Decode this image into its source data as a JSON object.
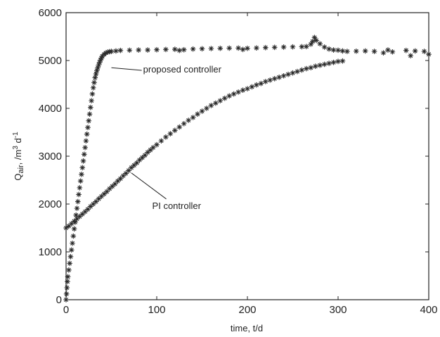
{
  "chart_data": {
    "type": "scatter",
    "title": "",
    "xlabel": "time, t/d",
    "ylabel_main": "Q",
    "ylabel_sub": "air",
    "ylabel_rest": ", /m",
    "ylabel_sup1": "3",
    "ylabel_d": " d",
    "ylabel_sup2": "-1",
    "xlim": [
      0,
      400
    ],
    "ylim": [
      0,
      6000
    ],
    "xticks": [
      0,
      100,
      200,
      300,
      400
    ],
    "yticks": [
      0,
      1000,
      2000,
      3000,
      4000,
      5000,
      6000
    ],
    "grid": false,
    "legend": "none",
    "marker": "asterisk",
    "annotations": [
      {
        "text": "proposed controller",
        "x": 85,
        "y": 4750,
        "arrow_to": [
          50,
          4850
        ]
      },
      {
        "text": "PI controller",
        "x": 95,
        "y": 1900,
        "arrow_to": [
          72,
          2650
        ]
      }
    ],
    "series": [
      {
        "label": "proposed controller",
        "points": [
          [
            0,
            0
          ],
          [
            0.5,
            120
          ],
          [
            1,
            250
          ],
          [
            1.5,
            380
          ],
          [
            2,
            480
          ],
          [
            3,
            620
          ],
          [
            4,
            760
          ],
          [
            5,
            900
          ],
          [
            6,
            1040
          ],
          [
            7,
            1180
          ],
          [
            8,
            1330
          ],
          [
            9,
            1480
          ],
          [
            10,
            1620
          ],
          [
            11,
            1770
          ],
          [
            12,
            1910
          ],
          [
            13,
            2050
          ],
          [
            14,
            2200
          ],
          [
            15,
            2340
          ],
          [
            16,
            2480
          ],
          [
            17,
            2620
          ],
          [
            18,
            2760
          ],
          [
            19,
            2900
          ],
          [
            20,
            3040
          ],
          [
            21,
            3180
          ],
          [
            22,
            3320
          ],
          [
            23,
            3460
          ],
          [
            24,
            3600
          ],
          [
            25,
            3740
          ],
          [
            26,
            3880
          ],
          [
            27,
            4020
          ],
          [
            28,
            4160
          ],
          [
            29,
            4300
          ],
          [
            30,
            4430
          ],
          [
            31,
            4540
          ],
          [
            32,
            4640
          ],
          [
            33,
            4720
          ],
          [
            34,
            4790
          ],
          [
            35,
            4850
          ],
          [
            36,
            4910
          ],
          [
            37,
            4960
          ],
          [
            38,
            5010
          ],
          [
            39,
            5050
          ],
          [
            40,
            5090
          ],
          [
            42,
            5130
          ],
          [
            44,
            5160
          ],
          [
            46,
            5175
          ],
          [
            48,
            5185
          ],
          [
            50,
            5190
          ],
          [
            55,
            5200
          ],
          [
            60,
            5210
          ],
          [
            70,
            5215
          ],
          [
            80,
            5220
          ],
          [
            90,
            5220
          ],
          [
            100,
            5225
          ],
          [
            110,
            5230
          ],
          [
            120,
            5235
          ],
          [
            125,
            5210
          ],
          [
            130,
            5225
          ],
          [
            140,
            5240
          ],
          [
            150,
            5245
          ],
          [
            160,
            5250
          ],
          [
            170,
            5255
          ],
          [
            180,
            5258
          ],
          [
            190,
            5260
          ],
          [
            195,
            5230
          ],
          [
            200,
            5255
          ],
          [
            210,
            5262
          ],
          [
            220,
            5270
          ],
          [
            230,
            5275
          ],
          [
            240,
            5280
          ],
          [
            250,
            5285
          ],
          [
            260,
            5288
          ],
          [
            265,
            5292
          ],
          [
            270,
            5340
          ],
          [
            272,
            5400
          ],
          [
            274,
            5480
          ],
          [
            276,
            5420
          ],
          [
            280,
            5350
          ],
          [
            285,
            5280
          ],
          [
            290,
            5240
          ],
          [
            295,
            5220
          ],
          [
            300,
            5215
          ],
          [
            305,
            5200
          ],
          [
            310,
            5190
          ],
          [
            320,
            5195
          ],
          [
            330,
            5200
          ],
          [
            340,
            5190
          ],
          [
            350,
            5160
          ],
          [
            355,
            5220
          ],
          [
            360,
            5180
          ],
          [
            375,
            5210
          ],
          [
            380,
            5100
          ],
          [
            385,
            5200
          ],
          [
            395,
            5190
          ],
          [
            400,
            5130
          ]
        ]
      },
      {
        "label": "PI controller",
        "points": [
          [
            0,
            1500
          ],
          [
            3,
            1540
          ],
          [
            6,
            1590
          ],
          [
            9,
            1640
          ],
          [
            12,
            1690
          ],
          [
            15,
            1740
          ],
          [
            18,
            1790
          ],
          [
            21,
            1840
          ],
          [
            24,
            1890
          ],
          [
            27,
            1950
          ],
          [
            30,
            2000
          ],
          [
            33,
            2050
          ],
          [
            36,
            2110
          ],
          [
            39,
            2160
          ],
          [
            42,
            2210
          ],
          [
            45,
            2260
          ],
          [
            48,
            2320
          ],
          [
            51,
            2370
          ],
          [
            54,
            2420
          ],
          [
            57,
            2480
          ],
          [
            60,
            2530
          ],
          [
            63,
            2590
          ],
          [
            66,
            2640
          ],
          [
            69,
            2700
          ],
          [
            72,
            2760
          ],
          [
            75,
            2810
          ],
          [
            78,
            2860
          ],
          [
            81,
            2920
          ],
          [
            84,
            2970
          ],
          [
            87,
            3020
          ],
          [
            90,
            3080
          ],
          [
            93,
            3130
          ],
          [
            96,
            3180
          ],
          [
            100,
            3240
          ],
          [
            105,
            3320
          ],
          [
            110,
            3400
          ],
          [
            115,
            3470
          ],
          [
            120,
            3540
          ],
          [
            125,
            3610
          ],
          [
            130,
            3680
          ],
          [
            135,
            3750
          ],
          [
            140,
            3810
          ],
          [
            145,
            3880
          ],
          [
            150,
            3940
          ],
          [
            155,
            4000
          ],
          [
            160,
            4060
          ],
          [
            165,
            4110
          ],
          [
            170,
            4160
          ],
          [
            175,
            4210
          ],
          [
            180,
            4260
          ],
          [
            185,
            4300
          ],
          [
            190,
            4340
          ],
          [
            195,
            4380
          ],
          [
            200,
            4410
          ],
          [
            205,
            4450
          ],
          [
            210,
            4490
          ],
          [
            215,
            4520
          ],
          [
            220,
            4560
          ],
          [
            225,
            4590
          ],
          [
            230,
            4620
          ],
          [
            235,
            4650
          ],
          [
            240,
            4680
          ],
          [
            245,
            4710
          ],
          [
            250,
            4740
          ],
          [
            255,
            4770
          ],
          [
            260,
            4800
          ],
          [
            265,
            4830
          ],
          [
            270,
            4850
          ],
          [
            275,
            4880
          ],
          [
            280,
            4900
          ],
          [
            285,
            4920
          ],
          [
            290,
            4940
          ],
          [
            295,
            4960
          ],
          [
            300,
            4980
          ],
          [
            305,
            4990
          ]
        ]
      }
    ]
  }
}
